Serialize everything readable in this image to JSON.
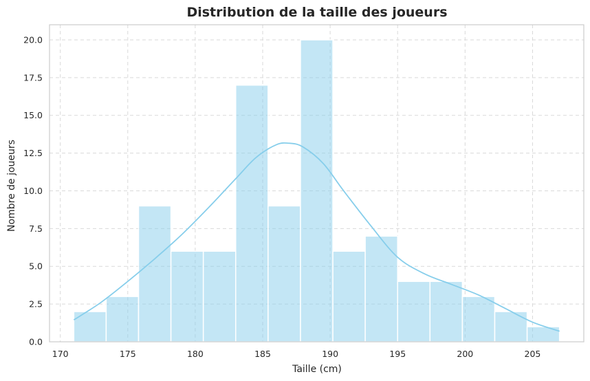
{
  "chart_data": {
    "type": "bar",
    "title": "Distribution de la taille des joueurs",
    "xlabel": "Taille (cm)",
    "ylabel": "Nombre de joueurs",
    "xlim": [
      169.2,
      208.8
    ],
    "ylim": [
      0,
      21
    ],
    "grid": true,
    "x_ticks": [
      170,
      175,
      180,
      185,
      190,
      195,
      200,
      205
    ],
    "y_ticks": [
      0.0,
      2.5,
      5.0,
      7.5,
      10.0,
      12.5,
      15.0,
      17.5,
      20.0
    ],
    "bins": [
      {
        "x0": 171.0,
        "x1": 173.4,
        "count": 2
      },
      {
        "x0": 173.4,
        "x1": 175.8,
        "count": 3
      },
      {
        "x0": 175.8,
        "x1": 178.2,
        "count": 9
      },
      {
        "x0": 178.2,
        "x1": 180.6,
        "count": 6
      },
      {
        "x0": 180.6,
        "x1": 183.0,
        "count": 6
      },
      {
        "x0": 183.0,
        "x1": 185.4,
        "count": 17
      },
      {
        "x0": 185.4,
        "x1": 187.8,
        "count": 9
      },
      {
        "x0": 187.8,
        "x1": 190.2,
        "count": 20
      },
      {
        "x0": 190.2,
        "x1": 192.6,
        "count": 6
      },
      {
        "x0": 192.6,
        "x1": 195.0,
        "count": 7
      },
      {
        "x0": 195.0,
        "x1": 197.4,
        "count": 4
      },
      {
        "x0": 197.4,
        "x1": 199.8,
        "count": 4
      },
      {
        "x0": 199.8,
        "x1": 202.2,
        "count": 3
      },
      {
        "x0": 202.2,
        "x1": 204.6,
        "count": 2
      },
      {
        "x0": 204.6,
        "x1": 207.0,
        "count": 1
      }
    ],
    "kde": {
      "x": [
        171,
        173,
        175,
        177,
        179,
        181,
        183,
        184.5,
        186,
        187,
        188,
        189.5,
        191,
        193,
        195,
        197,
        199,
        201,
        203,
        205,
        207
      ],
      "y": [
        1.45,
        2.6,
        4.0,
        5.5,
        7.1,
        8.9,
        10.8,
        12.2,
        13.05,
        13.15,
        12.9,
        11.8,
        10.0,
        7.7,
        5.6,
        4.5,
        3.8,
        3.1,
        2.2,
        1.3,
        0.7
      ]
    },
    "colors": {
      "bar_fill": "#87ceeb",
      "bar_opacity": 0.5,
      "kde_line": "#87ceeb",
      "grid": "#d9d9d9",
      "frame": "#cccccc",
      "text": "#262626"
    }
  }
}
